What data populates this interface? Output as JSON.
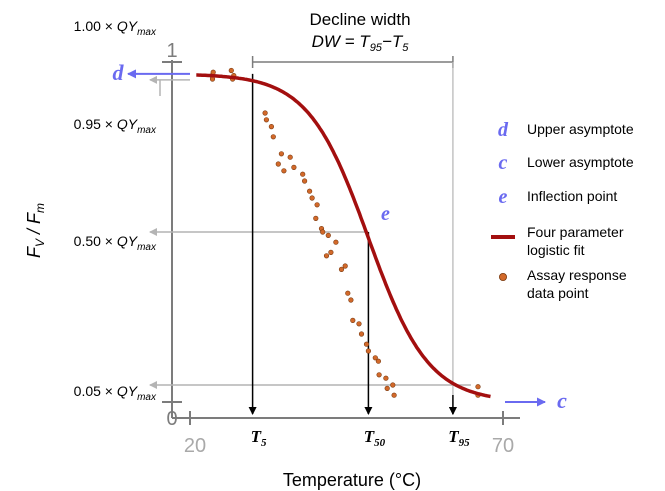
{
  "chart_data": {
    "type": "scatter",
    "x_range": [
      20,
      70
    ],
    "y_range": [
      0,
      1
    ],
    "x_ticks": [
      20,
      70
    ],
    "y_ticks": [
      0,
      1
    ],
    "xlabel": "Temperature (°C)",
    "ylabel": {
      "prefix": "F",
      "prefix_sub": "V",
      "sep": " / ",
      "main": "F",
      "main_sub": "m"
    },
    "y_level_labels": [
      {
        "coef": "1.00 × ",
        "qy": "QY",
        "qy_sub": "max",
        "y": 1.0
      },
      {
        "coef": "0.95 × ",
        "qy": "QY",
        "qy_sub": "max",
        "y": 0.95
      },
      {
        "coef": "0.50 × ",
        "qy": "QY",
        "qy_sub": "max",
        "y": 0.5
      },
      {
        "coef": "0.05 × ",
        "qy": "QY",
        "qy_sub": "max",
        "y": 0.05
      }
    ],
    "logistic_fit": {
      "top": 0.965,
      "bottom": 0.0,
      "t50": 48.5,
      "hill": 8.0,
      "x_start": 21,
      "x_end": 68
    },
    "thresholds": [
      {
        "label": "T",
        "sub": "5",
        "x": 30.0
      },
      {
        "label": "T",
        "sub": "50",
        "x": 48.5
      },
      {
        "label": "T",
        "sub": "95",
        "x": 62.0
      }
    ],
    "curve_markers": {
      "d": "d",
      "c": "c",
      "e": "e"
    },
    "decline_width": {
      "title": "Decline width",
      "formula": {
        "dw": "DW",
        "eq": " = ",
        "t1": "T",
        "t1_sub": "95",
        "minus": "−",
        "t2": "T",
        "t2_sub": "5"
      },
      "x_from": 30.0,
      "x_to": 62.0
    },
    "points": [
      [
        23.5,
        0.96
      ],
      [
        23.6,
        0.95
      ],
      [
        23.7,
        0.97
      ],
      [
        27.0,
        0.96
      ],
      [
        26.6,
        0.975
      ],
      [
        26.8,
        0.95
      ],
      [
        32.0,
        0.85
      ],
      [
        32.2,
        0.83
      ],
      [
        33.0,
        0.81
      ],
      [
        33.3,
        0.78
      ],
      [
        34.6,
        0.73
      ],
      [
        34.1,
        0.7
      ],
      [
        35.0,
        0.68
      ],
      [
        36.0,
        0.72
      ],
      [
        36.6,
        0.69
      ],
      [
        38.0,
        0.67
      ],
      [
        38.3,
        0.65
      ],
      [
        39.1,
        0.62
      ],
      [
        40.3,
        0.58
      ],
      [
        39.5,
        0.6
      ],
      [
        40.1,
        0.54
      ],
      [
        41.0,
        0.51
      ],
      [
        41.2,
        0.5
      ],
      [
        41.8,
        0.43
      ],
      [
        42.5,
        0.44
      ],
      [
        42.1,
        0.49
      ],
      [
        43.3,
        0.47
      ],
      [
        44.2,
        0.39
      ],
      [
        44.8,
        0.4
      ],
      [
        45.2,
        0.32
      ],
      [
        45.7,
        0.3
      ],
      [
        46.0,
        0.24
      ],
      [
        47.0,
        0.23
      ],
      [
        47.4,
        0.2
      ],
      [
        48.2,
        0.17
      ],
      [
        48.5,
        0.15
      ],
      [
        49.6,
        0.13
      ],
      [
        50.1,
        0.12
      ],
      [
        50.2,
        0.08
      ],
      [
        51.3,
        0.07
      ],
      [
        51.5,
        0.04
      ],
      [
        52.4,
        0.05
      ],
      [
        52.6,
        0.02
      ],
      [
        66.0,
        0.02
      ],
      [
        66.0,
        0.045
      ]
    ],
    "legend": [
      {
        "symbol": "d",
        "label": "Upper asymptote"
      },
      {
        "symbol": "c",
        "label": "Lower asymptote"
      },
      {
        "symbol": "e",
        "label": "Inflection point"
      },
      {
        "symbol": "line",
        "label": [
          "Four parameter",
          "logistic fit"
        ]
      },
      {
        "symbol": "dot",
        "label": [
          "Assay response",
          "data point"
        ]
      }
    ],
    "colors": {
      "fit": "#a30f0f",
      "point": "#d2692a",
      "point_stroke": "#7a3a10",
      "marker": "#6a6af0",
      "arrow_gray": "#b4b4b4",
      "axis": "#7c7c7c",
      "tick_label": "#a9a9a9"
    }
  }
}
